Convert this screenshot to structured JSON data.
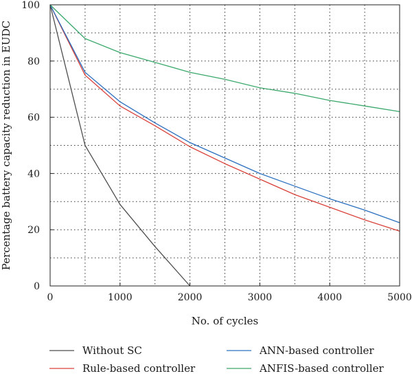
{
  "chart_data": {
    "type": "line",
    "title": "",
    "xlabel": "No. of cycles",
    "ylabel": "Percentage battery capacity reduction in EUDC",
    "xlim": [
      0,
      5000
    ],
    "ylim": [
      0,
      100
    ],
    "xticks": [
      0,
      1000,
      2000,
      3000,
      4000,
      5000
    ],
    "yticks": [
      0,
      20,
      40,
      60,
      80,
      100
    ],
    "x_grid": [
      0,
      500,
      1000,
      1500,
      2000,
      2500,
      3000,
      3500,
      4000,
      4500,
      5000
    ],
    "y_grid": [
      0,
      10,
      20,
      30,
      40,
      50,
      60,
      70,
      80,
      90,
      100
    ],
    "grid": true,
    "legend_position": "bottom",
    "series": [
      {
        "name": "Without SC",
        "color": "#4d4d4d",
        "x": [
          0,
          500,
          1000,
          1500,
          2000
        ],
        "y": [
          100,
          50,
          29,
          14,
          0
        ]
      },
      {
        "name": "Rule-based controller",
        "color": "#d9413a",
        "x": [
          0,
          500,
          1000,
          1500,
          2000,
          2500,
          3000,
          3500,
          4000,
          4500,
          5000
        ],
        "y": [
          100,
          75,
          64,
          57,
          49.5,
          43.5,
          38,
          32.5,
          28,
          23.5,
          19.5
        ]
      },
      {
        "name": "ANN-based controller",
        "color": "#2a6fbf",
        "x": [
          0,
          500,
          1000,
          1500,
          2000,
          2500,
          3000,
          3500,
          4000,
          4500,
          5000
        ],
        "y": [
          100,
          76,
          65.5,
          58,
          51,
          45.5,
          40,
          35.5,
          31,
          27,
          22.5
        ]
      },
      {
        "name": "ANFIS-based controller",
        "color": "#3aa86b",
        "x": [
          0,
          500,
          1000,
          1500,
          2000,
          2500,
          3000,
          3500,
          4000,
          4500,
          5000
        ],
        "y": [
          100,
          88,
          83,
          79.5,
          76,
          73.5,
          70.5,
          68.5,
          66,
          64,
          62
        ]
      }
    ]
  }
}
